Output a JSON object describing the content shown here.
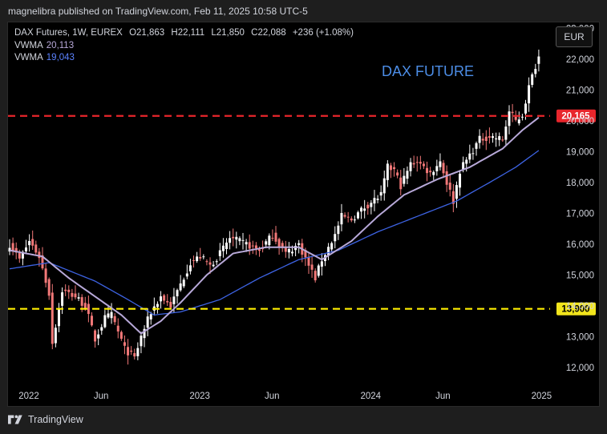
{
  "header": {
    "published_text": "magnelibra published on TradingView.com, Feb 11, 2025 10:58 UTC-5"
  },
  "legend": {
    "symbol_line": "DAX Futures, 1W, EUREX",
    "ohlc": {
      "open": "O21,863",
      "high": "H22,111",
      "low": "L21,850",
      "close": "C22,088",
      "change": "+236 (+1.08%)"
    },
    "vwma1": {
      "label": "VWMA",
      "value": "20,113"
    },
    "vwma2": {
      "label": "VWMA",
      "value": "19,043"
    }
  },
  "currency_button": "EUR",
  "footer": {
    "brand": "TradingView"
  },
  "colors": {
    "up": "#ffffff",
    "down": "#f27878",
    "vwma1": "#b8a9d9",
    "vwma2": "#3d63e3",
    "red_level": "#e8262c",
    "yellow_level": "#fff000",
    "title": "#4c8de6",
    "red_badge": "#e8262c",
    "yellow_badge": "#f2e51c"
  },
  "chart_data": {
    "type": "candlestick",
    "title": "DAX FUTURE",
    "x_tick_labels": [
      "2022",
      "Jun",
      "2023",
      "Jun",
      "2024",
      "Jun",
      "2025"
    ],
    "y_tick_labels": [
      "12,000",
      "13,000",
      "14,000",
      "15,000",
      "16,000",
      "17,000",
      "18,000",
      "19,000",
      "20,000",
      "21,000",
      "22,000",
      "23,000"
    ],
    "ylim": [
      11500,
      23200
    ],
    "horizontal_levels": [
      {
        "value": 20165,
        "label": "20,165",
        "color": "red",
        "style": "dashed"
      },
      {
        "value": 13900,
        "label": "13,900",
        "color": "yellow",
        "style": "dashed"
      }
    ],
    "close_anchors": [
      {
        "week": 0,
        "close": 16000
      },
      {
        "week": 3,
        "close": 15500
      },
      {
        "week": 6,
        "close": 16100
      },
      {
        "week": 9,
        "close": 15600
      },
      {
        "week": 12,
        "close": 14400
      },
      {
        "week": 13,
        "close": 12800
      },
      {
        "week": 16,
        "close": 14500
      },
      {
        "week": 20,
        "close": 14300
      },
      {
        "week": 23,
        "close": 14000
      },
      {
        "week": 26,
        "close": 12900
      },
      {
        "week": 29,
        "close": 13600
      },
      {
        "week": 31,
        "close": 13700
      },
      {
        "week": 35,
        "close": 12600
      },
      {
        "week": 38,
        "close": 12300
      },
      {
        "week": 40,
        "close": 13000
      },
      {
        "week": 43,
        "close": 13800
      },
      {
        "week": 46,
        "close": 14300
      },
      {
        "week": 49,
        "close": 14000
      },
      {
        "week": 52,
        "close": 14700
      },
      {
        "week": 55,
        "close": 15400
      },
      {
        "week": 58,
        "close": 15600
      },
      {
        "week": 61,
        "close": 15300
      },
      {
        "week": 64,
        "close": 15700
      },
      {
        "week": 67,
        "close": 16200
      },
      {
        "week": 72,
        "close": 16000
      },
      {
        "week": 76,
        "close": 15800
      },
      {
        "week": 80,
        "close": 16300
      },
      {
        "week": 84,
        "close": 15700
      },
      {
        "week": 88,
        "close": 16000
      },
      {
        "week": 91,
        "close": 15300
      },
      {
        "week": 93,
        "close": 14900
      },
      {
        "week": 95,
        "close": 15500
      },
      {
        "week": 99,
        "close": 16300
      },
      {
        "week": 101,
        "close": 16900
      },
      {
        "week": 104,
        "close": 16800
      },
      {
        "week": 108,
        "close": 17200
      },
      {
        "week": 113,
        "close": 17600
      },
      {
        "week": 115,
        "close": 18500
      },
      {
        "week": 117,
        "close": 18400
      },
      {
        "week": 119,
        "close": 17900
      },
      {
        "week": 122,
        "close": 18600
      },
      {
        "week": 124,
        "close": 18700
      },
      {
        "week": 128,
        "close": 18300
      },
      {
        "week": 131,
        "close": 18700
      },
      {
        "week": 133,
        "close": 18000
      },
      {
        "week": 135,
        "close": 17400
      },
      {
        "week": 137,
        "close": 18400
      },
      {
        "week": 140,
        "close": 18900
      },
      {
        "week": 143,
        "close": 19400
      },
      {
        "week": 146,
        "close": 19500
      },
      {
        "week": 150,
        "close": 19400
      },
      {
        "week": 152,
        "close": 20300
      },
      {
        "week": 154,
        "close": 20000
      },
      {
        "week": 156,
        "close": 20200
      },
      {
        "week": 158,
        "close": 21100
      },
      {
        "week": 160,
        "close": 21800
      },
      {
        "week": 161,
        "close": 22088
      }
    ],
    "vwma1_anchors": [
      {
        "week": 0,
        "value": 15800
      },
      {
        "week": 10,
        "value": 15600
      },
      {
        "week": 18,
        "value": 14900
      },
      {
        "week": 26,
        "value": 14300
      },
      {
        "week": 34,
        "value": 13700
      },
      {
        "week": 40,
        "value": 13100
      },
      {
        "week": 46,
        "value": 13500
      },
      {
        "week": 52,
        "value": 14100
      },
      {
        "week": 60,
        "value": 15000
      },
      {
        "week": 68,
        "value": 15700
      },
      {
        "week": 78,
        "value": 15900
      },
      {
        "week": 88,
        "value": 15900
      },
      {
        "week": 95,
        "value": 15500
      },
      {
        "week": 104,
        "value": 16100
      },
      {
        "week": 112,
        "value": 16900
      },
      {
        "week": 120,
        "value": 17600
      },
      {
        "week": 130,
        "value": 18100
      },
      {
        "week": 140,
        "value": 18500
      },
      {
        "week": 150,
        "value": 19100
      },
      {
        "week": 156,
        "value": 19700
      },
      {
        "week": 161,
        "value": 20113
      }
    ],
    "vwma2_anchors": [
      {
        "week": 0,
        "value": 15200
      },
      {
        "week": 12,
        "value": 15400
      },
      {
        "week": 26,
        "value": 14800
      },
      {
        "week": 36,
        "value": 14200
      },
      {
        "week": 44,
        "value": 13700
      },
      {
        "week": 52,
        "value": 13800
      },
      {
        "week": 64,
        "value": 14200
      },
      {
        "week": 76,
        "value": 14900
      },
      {
        "week": 88,
        "value": 15500
      },
      {
        "week": 100,
        "value": 15800
      },
      {
        "week": 112,
        "value": 16400
      },
      {
        "week": 124,
        "value": 16900
      },
      {
        "week": 136,
        "value": 17400
      },
      {
        "week": 146,
        "value": 18000
      },
      {
        "week": 154,
        "value": 18500
      },
      {
        "week": 161,
        "value": 19043
      }
    ]
  }
}
